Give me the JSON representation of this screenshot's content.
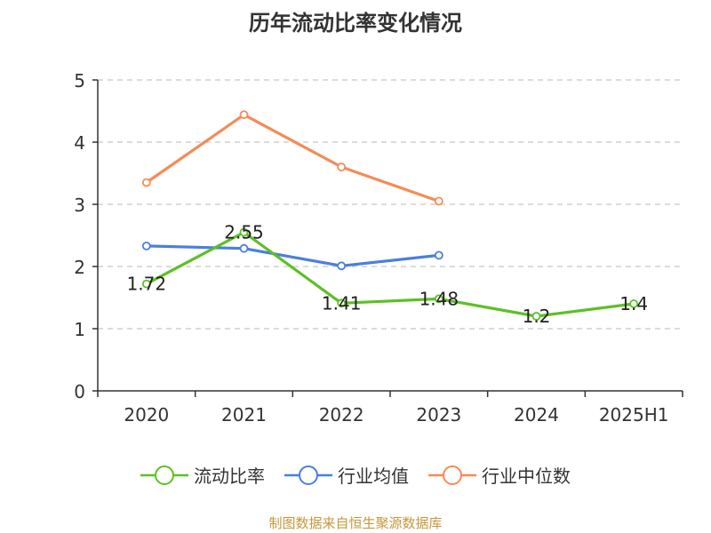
{
  "chart_data": {
    "type": "line",
    "title": "历年流动比率变化情况",
    "categories": [
      "2020",
      "2021",
      "2022",
      "2023",
      "2024",
      "2025H1"
    ],
    "yticks": [
      "0",
      "1",
      "2",
      "3",
      "4",
      "5"
    ],
    "ylim": [
      0,
      5
    ],
    "grid": true,
    "legend_position": "bottom",
    "series": [
      {
        "name": "流动比率",
        "color": "#5dc026",
        "values": [
          1.72,
          2.55,
          1.41,
          1.48,
          1.2,
          1.4
        ],
        "labels": [
          "1.72",
          "2.55",
          "1.41",
          "1.48",
          "1.2",
          "1.4"
        ]
      },
      {
        "name": "行业均值",
        "color": "#4a7fdc",
        "values": [
          2.33,
          2.29,
          2.01,
          2.18,
          null,
          null
        ]
      },
      {
        "name": "行业中位数",
        "color": "#f58b57",
        "values": [
          3.35,
          4.44,
          3.6,
          3.05,
          null,
          null
        ]
      }
    ],
    "source": "制图数据来自恒生聚源数据库"
  }
}
